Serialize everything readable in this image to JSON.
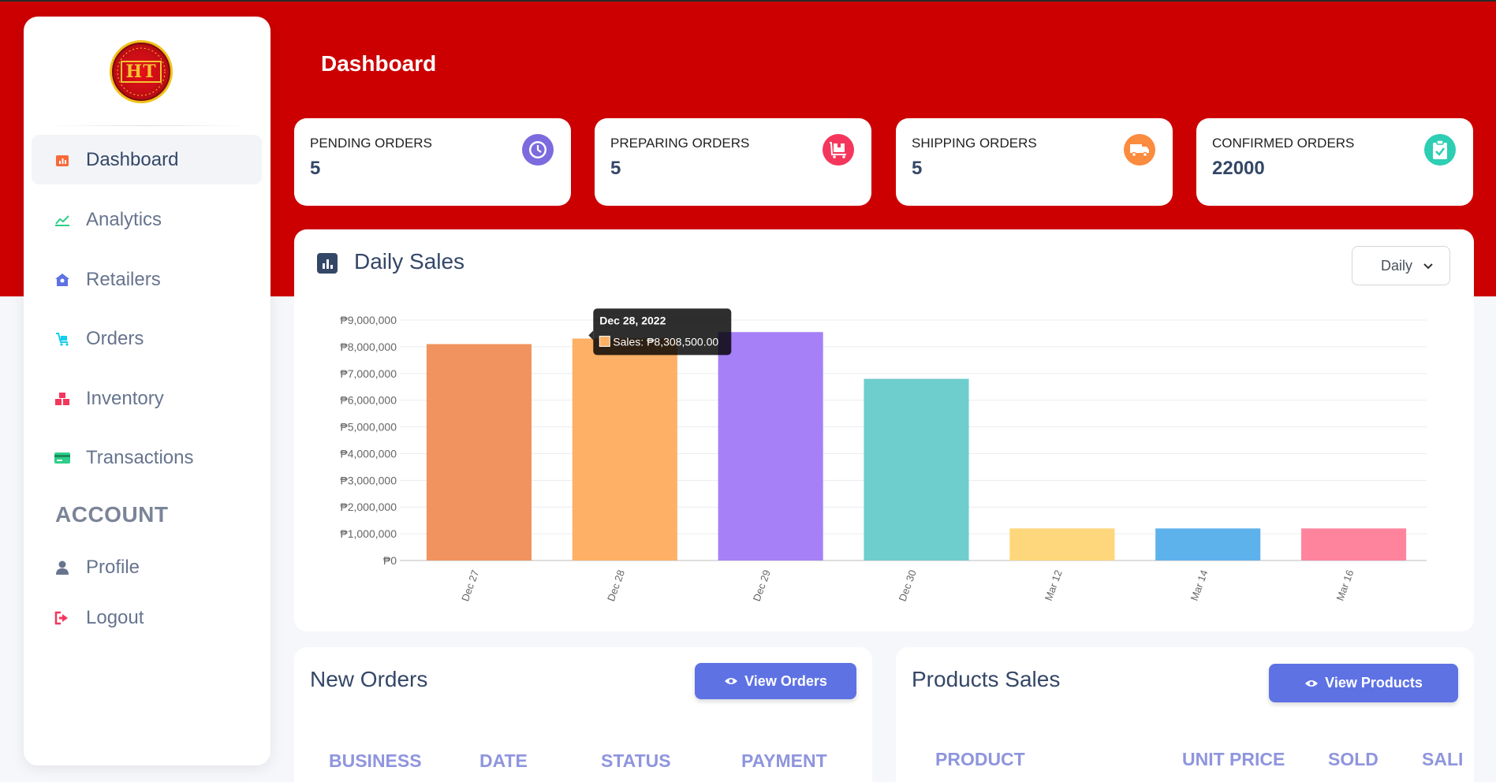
{
  "header": {
    "title": "Dashboard"
  },
  "logo": {
    "text": "HT",
    "ring_text": "HLUCKTRADING"
  },
  "sidebar": {
    "items": [
      {
        "label": "Dashboard",
        "icon": "dashboard-icon",
        "color": "#f5365c"
      },
      {
        "label": "Analytics",
        "icon": "analytics-icon",
        "color": "#2dce89"
      },
      {
        "label": "Retailers",
        "icon": "retailers-icon",
        "color": "#5e72e4"
      },
      {
        "label": "Orders",
        "icon": "orders-icon",
        "color": "#11cdef"
      },
      {
        "label": "Inventory",
        "icon": "inventory-icon",
        "color": "#f5365c"
      },
      {
        "label": "Transactions",
        "icon": "transactions-icon",
        "color": "#2dce89"
      }
    ],
    "account_title": "ACCOUNT",
    "account_items": [
      {
        "label": "Profile",
        "icon": "profile-icon",
        "color": "#67748e"
      },
      {
        "label": "Logout",
        "icon": "logout-icon",
        "color": "#f5365c"
      }
    ]
  },
  "stats": [
    {
      "label": "PENDING ORDERS",
      "value": "5",
      "icon": "clock-icon",
      "color": "#7c6bde"
    },
    {
      "label": "PREPARING ORDERS",
      "value": "5",
      "icon": "box-cart-icon",
      "color": "#f5365c"
    },
    {
      "label": "SHIPPING ORDERS",
      "value": "5",
      "icon": "truck-icon",
      "color": "#fb8b3e"
    },
    {
      "label": "CONFIRMED ORDERS",
      "value": "22000",
      "icon": "clipboard-check-icon",
      "color": "#2dceb3"
    }
  ],
  "daily_sales": {
    "title": "Daily Sales",
    "select_value": "Daily"
  },
  "chart_data": {
    "type": "bar",
    "title": "Daily Sales",
    "categories": [
      "Dec 27",
      "Dec 28",
      "Dec 29",
      "Dec 30",
      "Mar 12",
      "Mar 14",
      "Mar 16"
    ],
    "values": [
      8100000,
      8308500,
      8550000,
      6800000,
      1200000,
      1200000,
      1200000
    ],
    "colors": [
      "#f0935e",
      "#fdb066",
      "#a680f6",
      "#6ecdcd",
      "#fed77c",
      "#5eb2ec",
      "#fe849e"
    ],
    "ylim": [
      0,
      9000000
    ],
    "yticks": [
      0,
      1000000,
      2000000,
      3000000,
      4000000,
      5000000,
      6000000,
      7000000,
      8000000,
      9000000
    ],
    "ytick_labels": [
      "₱0",
      "₱1,000,000",
      "₱2,000,000",
      "₱3,000,000",
      "₱4,000,000",
      "₱5,000,000",
      "₱6,000,000",
      "₱7,000,000",
      "₱8,000,000",
      "₱9,000,000"
    ],
    "tooltip": {
      "index": 1,
      "title": "Dec 28, 2022",
      "label": "Sales: ₱8,308,500.00"
    },
    "grid": true
  },
  "new_orders": {
    "title": "New Orders",
    "button": "View Orders",
    "columns": [
      "BUSINESS",
      "DATE",
      "STATUS",
      "PAYMENT"
    ]
  },
  "products_sales": {
    "title": "Products Sales",
    "button": "View Products",
    "columns": [
      "PRODUCT",
      "UNIT PRICE",
      "SOLD",
      "SALI"
    ]
  }
}
